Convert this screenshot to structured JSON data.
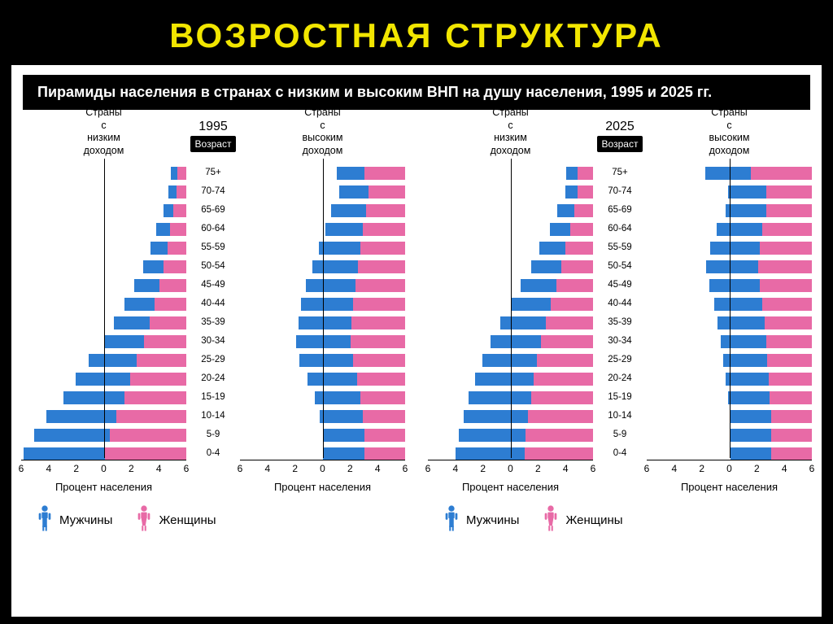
{
  "slide": {
    "title": "ВОЗРОСТНАЯ СТРУКТУРА",
    "title_color": "#f2e600",
    "bg_color": "#000000"
  },
  "subtitle": "Пирамиды населения в странах с низким и высоким ВНП на душу населения, 1995 и 2025 гг.",
  "colors": {
    "male": "#2d7dd2",
    "female": "#e86aa6",
    "card_bg": "#ffffff",
    "text": "#000000"
  },
  "chart": {
    "type": "population-pyramid",
    "age_header": "Возраст",
    "age_groups": [
      "75+",
      "70-74",
      "65-69",
      "60-64",
      "55-59",
      "50-54",
      "45-49",
      "40-44",
      "35-39",
      "30-34",
      "25-29",
      "20-24",
      "15-19",
      "10-14",
      "5-9",
      "0-4"
    ],
    "x_ticks": [
      6,
      4,
      2,
      0,
      2,
      4,
      6
    ],
    "x_max": 6.5,
    "x_caption": "Процент населения",
    "col_label_low": "Страны с низким доходом",
    "col_label_high": "Страны с высоким доходом",
    "panels": [
      {
        "year": "1995",
        "low": {
          "male": [
            0.5,
            0.6,
            0.8,
            1.1,
            1.3,
            1.6,
            2.0,
            2.4,
            2.8,
            3.2,
            3.8,
            4.3,
            4.8,
            5.5,
            6.0,
            6.4
          ],
          "female": [
            0.7,
            0.8,
            1.0,
            1.3,
            1.5,
            1.8,
            2.1,
            2.5,
            2.9,
            3.3,
            3.9,
            4.4,
            4.9,
            5.5,
            6.0,
            6.4
          ]
        },
        "high": {
          "male": [
            2.2,
            2.3,
            2.7,
            3.0,
            3.3,
            3.6,
            3.9,
            4.1,
            4.2,
            4.3,
            4.2,
            3.9,
            3.6,
            3.4,
            3.3,
            3.3
          ],
          "female": [
            3.2,
            2.9,
            3.1,
            3.3,
            3.5,
            3.7,
            3.9,
            4.1,
            4.2,
            4.3,
            4.1,
            3.8,
            3.5,
            3.3,
            3.2,
            3.2
          ]
        }
      },
      {
        "year": "2025",
        "low": {
          "male": [
            0.9,
            1.0,
            1.3,
            1.6,
            2.0,
            2.4,
            2.8,
            3.2,
            3.6,
            4.0,
            4.3,
            4.6,
            4.9,
            5.1,
            5.3,
            5.4
          ],
          "female": [
            1.2,
            1.2,
            1.5,
            1.8,
            2.2,
            2.5,
            2.9,
            3.3,
            3.7,
            4.1,
            4.4,
            4.7,
            4.9,
            5.1,
            5.3,
            5.4
          ]
        },
        "high": {
          "male": [
            3.6,
            3.0,
            3.2,
            3.6,
            3.9,
            4.1,
            4.0,
            3.8,
            3.7,
            3.6,
            3.5,
            3.4,
            3.3,
            3.2,
            3.2,
            3.2
          ],
          "female": [
            4.8,
            3.6,
            3.6,
            3.9,
            4.1,
            4.2,
            4.1,
            3.9,
            3.7,
            3.6,
            3.5,
            3.4,
            3.3,
            3.2,
            3.2,
            3.2
          ]
        }
      }
    ]
  },
  "legend": {
    "male": "Мужчины",
    "female": "Женщины"
  }
}
